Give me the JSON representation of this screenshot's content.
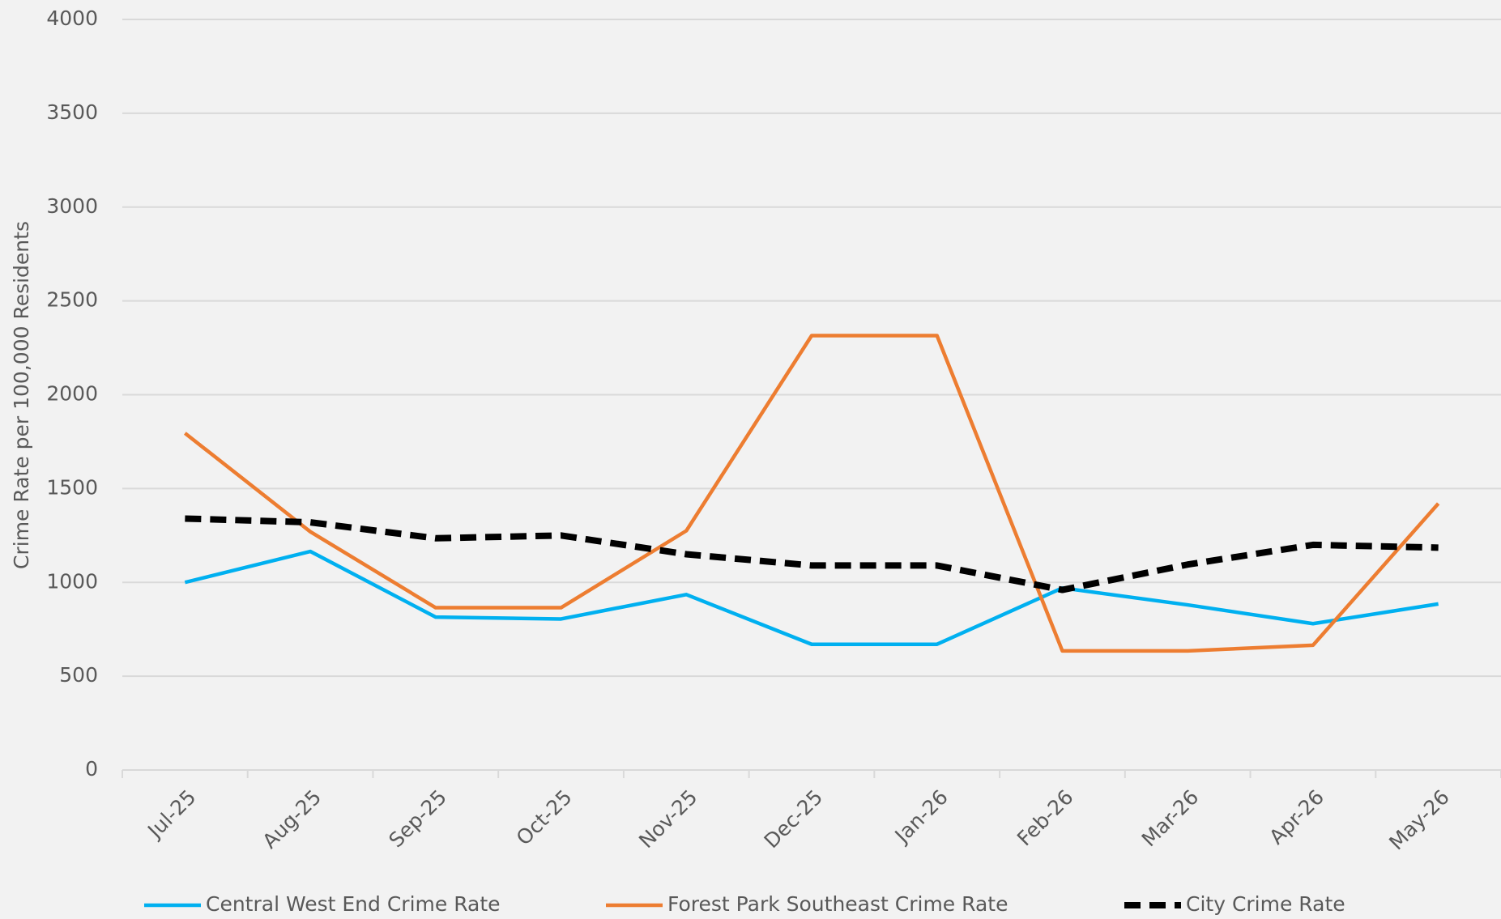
{
  "chart_data": {
    "type": "line",
    "y_label": "Crime Rate per 100,000 Residents",
    "categories": [
      "Jul-25",
      "Aug-25",
      "Sep-25",
      "Oct-25",
      "Nov-25",
      "Dec-25",
      "Jan-26",
      "Feb-26",
      "Mar-26",
      "Apr-26",
      "May-26"
    ],
    "series": [
      {
        "name": "Central West End Crime Rate",
        "color": "#00b0f0",
        "dashed": false,
        "values": [
          1000,
          1165,
          815,
          805,
          935,
          670,
          670,
          970,
          880,
          780,
          885
        ]
      },
      {
        "name": "Forest Park Southeast Crime Rate",
        "color": "#ed7d31",
        "dashed": false,
        "values": [
          1795,
          1270,
          865,
          865,
          1275,
          2315,
          2315,
          635,
          635,
          665,
          1420
        ]
      },
      {
        "name": "City Crime Rate",
        "color": "#000000",
        "dashed": true,
        "values": [
          1340,
          1320,
          1235,
          1250,
          1150,
          1090,
          1090,
          960,
          1095,
          1200,
          1185
        ]
      }
    ],
    "ylim": [
      0,
      4000
    ],
    "yticks": [
      0,
      500,
      1000,
      1500,
      2000,
      2500,
      3000,
      3500,
      4000
    ],
    "grid": true,
    "legend": "bottom"
  }
}
